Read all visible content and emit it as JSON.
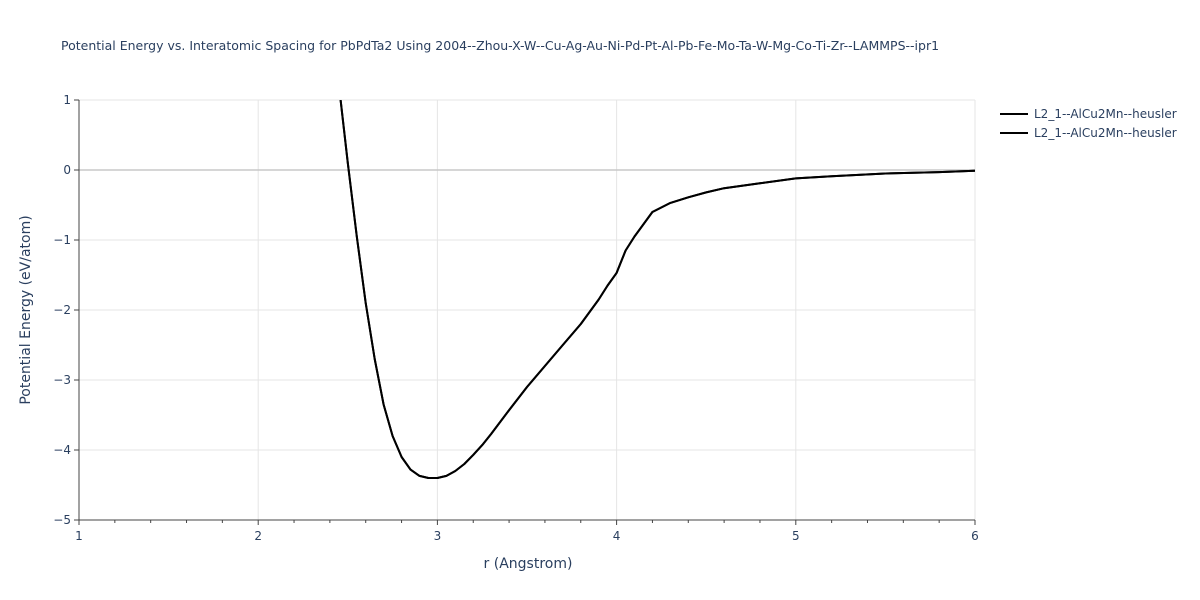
{
  "chart_data": {
    "type": "line",
    "title": "Potential Energy vs. Interatomic Spacing for PbPdTa2 Using 2004--Zhou-X-W--Cu-Ag-Au-Ni-Pd-Pt-Al-Pb-Fe-Mo-Ta-W-Mg-Co-Ti-Zr--LAMMPS--ipr1",
    "xlabel": "r (Angstrom)",
    "ylabel": "Potential Energy (eV/atom)",
    "xlim": [
      1,
      6
    ],
    "ylim": [
      -5,
      1
    ],
    "x_ticks": [
      1,
      2,
      3,
      4,
      5,
      6
    ],
    "y_ticks": [
      1,
      0,
      -1,
      -2,
      -3,
      -4,
      -5
    ],
    "x_tick_labels": [
      "1",
      "2",
      "3",
      "4",
      "5",
      "6"
    ],
    "y_tick_labels": [
      "1",
      "0",
      "−1",
      "−2",
      "−3",
      "−4",
      "−5"
    ],
    "grid": true,
    "legend_position": "top-right",
    "series": [
      {
        "name": "L2_1--AlCu2Mn--heusler",
        "color": "#000000",
        "x": [
          2.46,
          2.5,
          2.55,
          2.6,
          2.65,
          2.7,
          2.75,
          2.8,
          2.85,
          2.9,
          2.95,
          3.0,
          3.05,
          3.1,
          3.15,
          3.2,
          3.25,
          3.3,
          3.4,
          3.5,
          3.6,
          3.7,
          3.8,
          3.9,
          3.95,
          4.0,
          4.05,
          4.1,
          4.2,
          4.3,
          4.4,
          4.5,
          4.6,
          4.8,
          5.0,
          5.2,
          5.5,
          5.8,
          6.0
        ],
        "y": [
          1.0,
          0.1,
          -0.95,
          -1.9,
          -2.7,
          -3.35,
          -3.8,
          -4.1,
          -4.28,
          -4.37,
          -4.4,
          -4.4,
          -4.37,
          -4.3,
          -4.2,
          -4.07,
          -3.93,
          -3.77,
          -3.43,
          -3.1,
          -2.8,
          -2.5,
          -2.2,
          -1.85,
          -1.65,
          -1.47,
          -1.15,
          -0.95,
          -0.6,
          -0.47,
          -0.39,
          -0.32,
          -0.26,
          -0.19,
          -0.12,
          -0.09,
          -0.05,
          -0.03,
          -0.01
        ]
      },
      {
        "name": "L2_1--AlCu2Mn--heusler",
        "color": "#000000",
        "x": [
          2.46,
          2.5,
          2.55,
          2.6,
          2.65,
          2.7,
          2.75,
          2.8,
          2.85,
          2.9,
          2.95,
          3.0,
          3.05,
          3.1,
          3.15,
          3.2,
          3.25,
          3.3,
          3.4,
          3.5,
          3.6,
          3.7,
          3.8,
          3.9,
          3.95,
          4.0,
          4.05,
          4.1,
          4.2,
          4.3,
          4.4,
          4.5,
          4.6,
          4.8,
          5.0,
          5.2,
          5.5,
          5.8,
          6.0
        ],
        "y": [
          1.0,
          0.1,
          -0.95,
          -1.9,
          -2.7,
          -3.35,
          -3.8,
          -4.1,
          -4.28,
          -4.37,
          -4.4,
          -4.4,
          -4.37,
          -4.3,
          -4.2,
          -4.07,
          -3.93,
          -3.77,
          -3.43,
          -3.1,
          -2.8,
          -2.5,
          -2.2,
          -1.85,
          -1.65,
          -1.47,
          -1.15,
          -0.95,
          -0.6,
          -0.47,
          -0.39,
          -0.32,
          -0.26,
          -0.19,
          -0.12,
          -0.09,
          -0.05,
          -0.03,
          -0.01
        ]
      }
    ]
  }
}
